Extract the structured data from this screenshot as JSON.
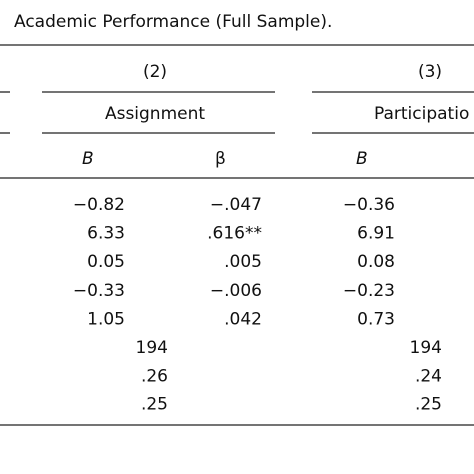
{
  "title": "Academic Performance (Full Sample).",
  "column_groups": [
    {
      "number": "(2)",
      "label": "Assignment"
    },
    {
      "number": "(3)",
      "label": "Participatio"
    }
  ],
  "subheaders": [
    "B",
    "β",
    "B"
  ],
  "rows": [
    [
      "−0.82",
      "−.047",
      "−0.36"
    ],
    [
      "6.33",
      ".616**",
      "6.91"
    ],
    [
      "0.05",
      ".005",
      "0.08"
    ],
    [
      "−0.33",
      "−.006",
      "−0.23"
    ],
    [
      "1.05",
      ".042",
      "0.73"
    ]
  ],
  "summary_rows": [
    [
      "194",
      "194"
    ],
    [
      ".26",
      ".24"
    ],
    [
      ".25",
      ".25"
    ]
  ]
}
